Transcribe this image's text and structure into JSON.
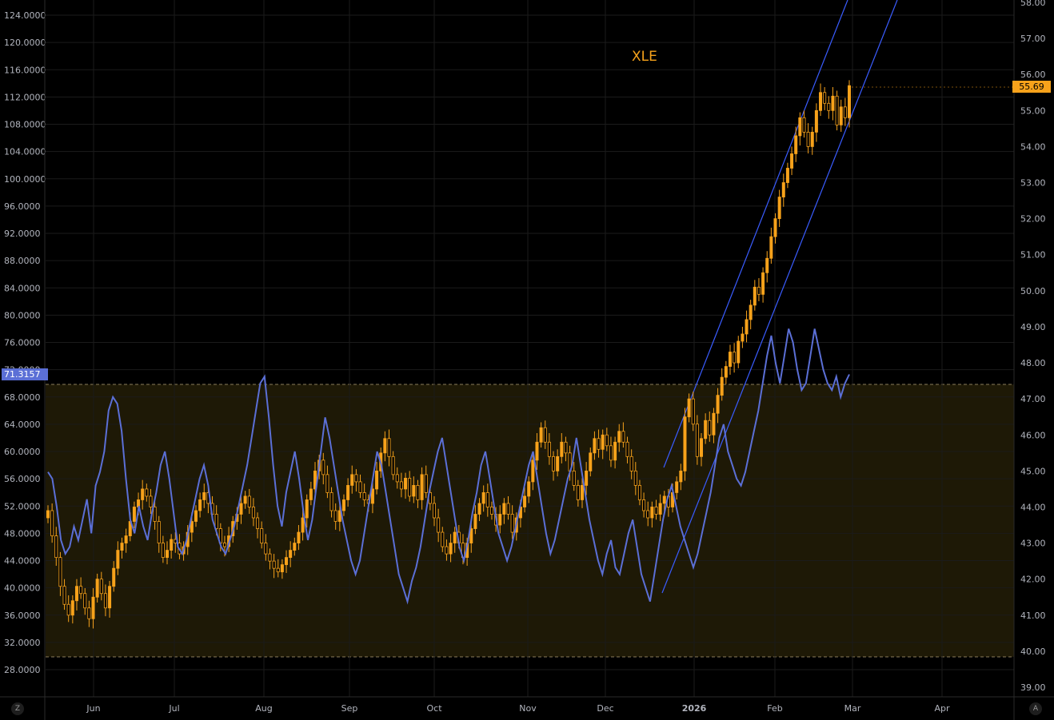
{
  "title": "XLE",
  "colors": {
    "background": "#000000",
    "candle": "#f7a21b",
    "rsi_line": "#5b6fd6",
    "channel": "#3a5cff",
    "zone_fill": "#1e1906",
    "zone_border": "#b5a37a",
    "grid": "#1b1b1b"
  },
  "tags": {
    "rsi_value": "71.3157",
    "price_value": "55.69"
  },
  "buttons": {
    "left": "Z",
    "right": "A"
  },
  "chart_data": {
    "type": "candlestick",
    "title": "XLE",
    "x_labels": [
      "Jun",
      "Jul",
      "Aug",
      "Sep",
      "Oct",
      "Nov",
      "Dec",
      "2026",
      "Feb",
      "Mar",
      "Apr"
    ],
    "left_axis": {
      "label": "",
      "ticks": [
        "124.0000",
        "120.0000",
        "116.0000",
        "112.0000",
        "108.0000",
        "104.0000",
        "100.0000",
        "96.0000",
        "92.0000",
        "88.0000",
        "84.0000",
        "80.0000",
        "76.0000",
        "72.0000",
        "68.0000",
        "64.0000",
        "60.0000",
        "56.0000",
        "52.0000",
        "48.0000",
        "44.0000",
        "40.0000",
        "36.0000",
        "32.0000",
        "28.0000"
      ]
    },
    "right_axis": {
      "label": "",
      "ticks": [
        "58.00",
        "57.00",
        "56.00",
        "55.00",
        "54.00",
        "53.00",
        "52.00",
        "51.00",
        "50.00",
        "49.00",
        "48.00",
        "47.00",
        "46.00",
        "45.00",
        "44.00",
        "43.00",
        "42.00",
        "41.00",
        "40.00",
        "39.00"
      ],
      "range": [
        38.7,
        58.1
      ]
    },
    "last_price": 55.69,
    "last_rsi": 71.3157,
    "rsi_zone": [
      29,
      71.3157
    ],
    "price_close": [
      43.9,
      43.2,
      42.6,
      41.8,
      41.3,
      41.0,
      41.4,
      41.8,
      41.6,
      41.2,
      40.9,
      41.5,
      42.0,
      41.6,
      41.2,
      41.8,
      42.3,
      42.8,
      43.0,
      43.2,
      43.6,
      44.0,
      44.2,
      44.5,
      44.3,
      44.0,
      43.6,
      43.0,
      42.6,
      42.8,
      43.1,
      43.0,
      42.7,
      42.9,
      43.3,
      43.6,
      43.9,
      44.2,
      44.4,
      44.1,
      43.8,
      43.4,
      43.0,
      42.9,
      43.2,
      43.6,
      43.8,
      44.1,
      44.3,
      44.0,
      43.7,
      43.4,
      43.0,
      42.7,
      42.5,
      42.3,
      42.2,
      42.4,
      42.6,
      42.8,
      43.0,
      43.3,
      43.7,
      44.2,
      44.5,
      45.0,
      45.3,
      44.9,
      44.4,
      43.9,
      43.6,
      43.9,
      44.2,
      44.6,
      44.9,
      44.7,
      44.4,
      44.2,
      44.1,
      44.5,
      45.0,
      45.5,
      45.9,
      45.4,
      44.9,
      44.7,
      44.5,
      44.8,
      44.3,
      44.6,
      44.2,
      44.9,
      44.4,
      44.1,
      43.7,
      43.3,
      42.9,
      42.7,
      43.0,
      43.3,
      43.0,
      42.6,
      43.0,
      43.4,
      43.8,
      44.1,
      44.4,
      44.0,
      43.8,
      43.5,
      43.8,
      44.1,
      43.8,
      43.3,
      43.7,
      44.0,
      44.3,
      44.7,
      45.3,
      45.8,
      46.2,
      45.8,
      45.4,
      45.0,
      45.4,
      45.8,
      45.5,
      45.0,
      44.6,
      44.2,
      44.6,
      45.0,
      45.5,
      45.9,
      45.6,
      46.0,
      45.7,
      45.3,
      45.8,
      46.1,
      45.8,
      45.4,
      45.0,
      44.6,
      44.2,
      43.9,
      43.7,
      44.0,
      43.8,
      44.1,
      44.3,
      44.0,
      44.4,
      44.7,
      45.0,
      46.5,
      47.0,
      46.3,
      45.4,
      45.9,
      46.4,
      46.0,
      46.6,
      47.1,
      47.6,
      47.9,
      48.3,
      48.0,
      48.6,
      48.8,
      49.2,
      49.6,
      50.1,
      49.9,
      50.5,
      50.9,
      51.5,
      52.0,
      52.6,
      53.0,
      53.4,
      53.8,
      54.3,
      54.8,
      54.4,
      54.0,
      54.4,
      55.0,
      55.5,
      55.2,
      55.0,
      55.4,
      54.6,
      55.1,
      54.8,
      55.69
    ],
    "rsi": [
      57,
      56,
      52,
      47,
      45,
      46,
      49,
      47,
      50,
      53,
      48,
      55,
      57,
      60,
      66,
      68,
      67,
      63,
      56,
      50,
      48,
      52,
      49,
      47,
      51,
      54,
      58,
      60,
      56,
      51,
      46,
      45,
      47,
      50,
      53,
      56,
      58,
      55,
      50,
      48,
      46,
      45,
      47,
      49,
      52,
      55,
      58,
      62,
      66,
      70,
      71,
      65,
      58,
      52,
      49,
      54,
      57,
      60,
      56,
      51,
      47,
      50,
      55,
      60,
      65,
      62,
      58,
      54,
      50,
      47,
      44,
      42,
      44,
      48,
      52,
      56,
      60,
      58,
      54,
      50,
      46,
      42,
      40,
      38,
      41,
      43,
      46,
      50,
      54,
      57,
      60,
      62,
      58,
      54,
      50,
      46,
      44,
      47,
      51,
      54,
      58,
      60,
      56,
      52,
      48,
      46,
      44,
      46,
      49,
      52,
      55,
      58,
      60,
      56,
      52,
      48,
      45,
      47,
      50,
      53,
      56,
      58,
      62,
      58,
      54,
      50,
      47,
      44,
      42,
      45,
      47,
      43,
      42,
      45,
      48,
      50,
      46,
      42,
      40,
      38,
      42,
      46,
      50,
      53,
      55,
      52,
      49,
      47,
      45,
      43,
      45,
      48,
      51,
      54,
      58,
      62,
      64,
      60,
      58,
      56,
      55,
      57,
      60,
      63,
      66,
      70,
      74,
      77,
      73,
      70,
      74,
      78,
      76,
      72,
      69,
      70,
      74,
      78,
      75,
      72,
      70,
      69,
      71,
      68,
      70,
      71.3157
    ],
    "channel": {
      "upper": [
        [
          830,
          585
        ],
        [
          1060,
          0
        ]
      ],
      "lower": [
        [
          828,
          742
        ],
        [
          1122,
          0
        ]
      ]
    },
    "rsi_series_name": ""
  }
}
